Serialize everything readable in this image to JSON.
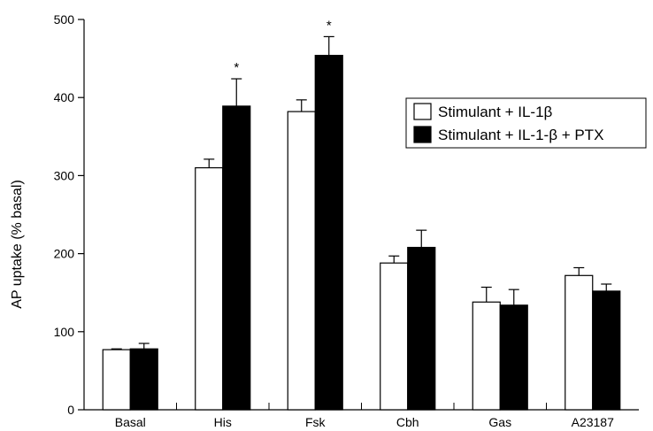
{
  "chart_data": {
    "type": "bar",
    "title": "",
    "xlabel": "",
    "ylabel": "AP uptake (% basal)",
    "ylim": [
      0,
      500
    ],
    "yticks": [
      0,
      100,
      200,
      300,
      400,
      500
    ],
    "categories": [
      "Basal",
      "His",
      "Fsk",
      "Cbh",
      "Gas",
      "A23187"
    ],
    "series": [
      {
        "name": "Stimulant + IL-1β",
        "color": "#ffffff",
        "values": [
          77,
          310,
          382,
          188,
          138,
          172
        ],
        "errors": [
          1,
          11,
          15,
          9,
          19,
          10
        ]
      },
      {
        "name": "Stimulant + IL-1-β + PTX",
        "color": "#000000",
        "values": [
          78,
          389,
          454,
          208,
          134,
          152
        ],
        "errors": [
          7,
          35,
          24,
          22,
          20,
          9
        ]
      }
    ],
    "annotations": [
      {
        "category": "His",
        "series": 1,
        "text": "*"
      },
      {
        "category": "Fsk",
        "series": 1,
        "text": "*"
      }
    ],
    "grid": false,
    "legend_position": "top-right"
  }
}
